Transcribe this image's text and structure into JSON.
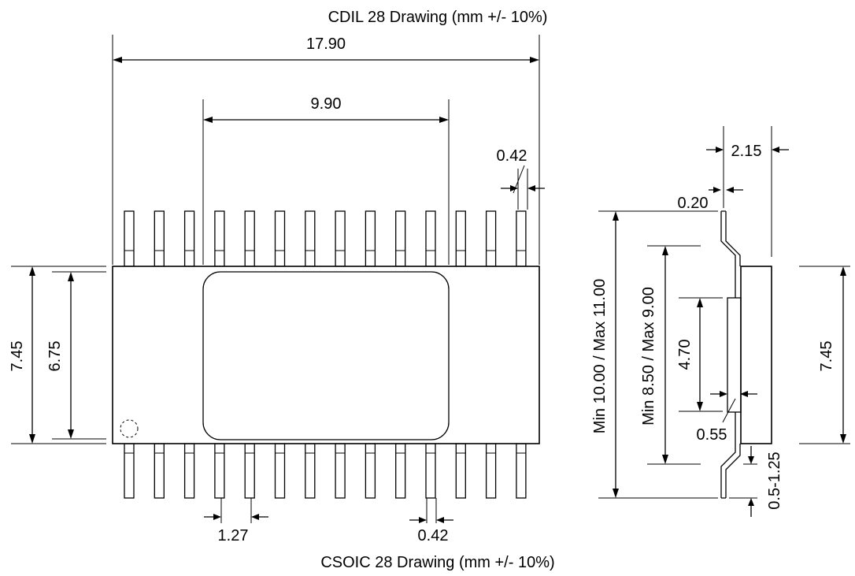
{
  "title_top": "CDIL 28 Drawing (mm +/- 10%)",
  "title_bottom": "CSOIC 28 Drawing (mm +/- 10%)",
  "dims": {
    "overall_length": "17.90",
    "window_length": "9.90",
    "lead_width_top": "0.42",
    "body_width_outer": "7.45",
    "body_width_inner": "6.75",
    "pitch": "1.27",
    "lead_width_bottom": "0.42",
    "height": "2.15",
    "lead_thickness": "0.20",
    "span_total": "Min 10.00 / Max 11.00",
    "span_inner": "Min 8.50 / Max 9.00",
    "side_4_70": "4.70",
    "side_0_55": "0.55",
    "side_7_45": "7.45",
    "foot_range": "0.5-1.25",
    "foot_bottom": "0.5-1.25"
  }
}
